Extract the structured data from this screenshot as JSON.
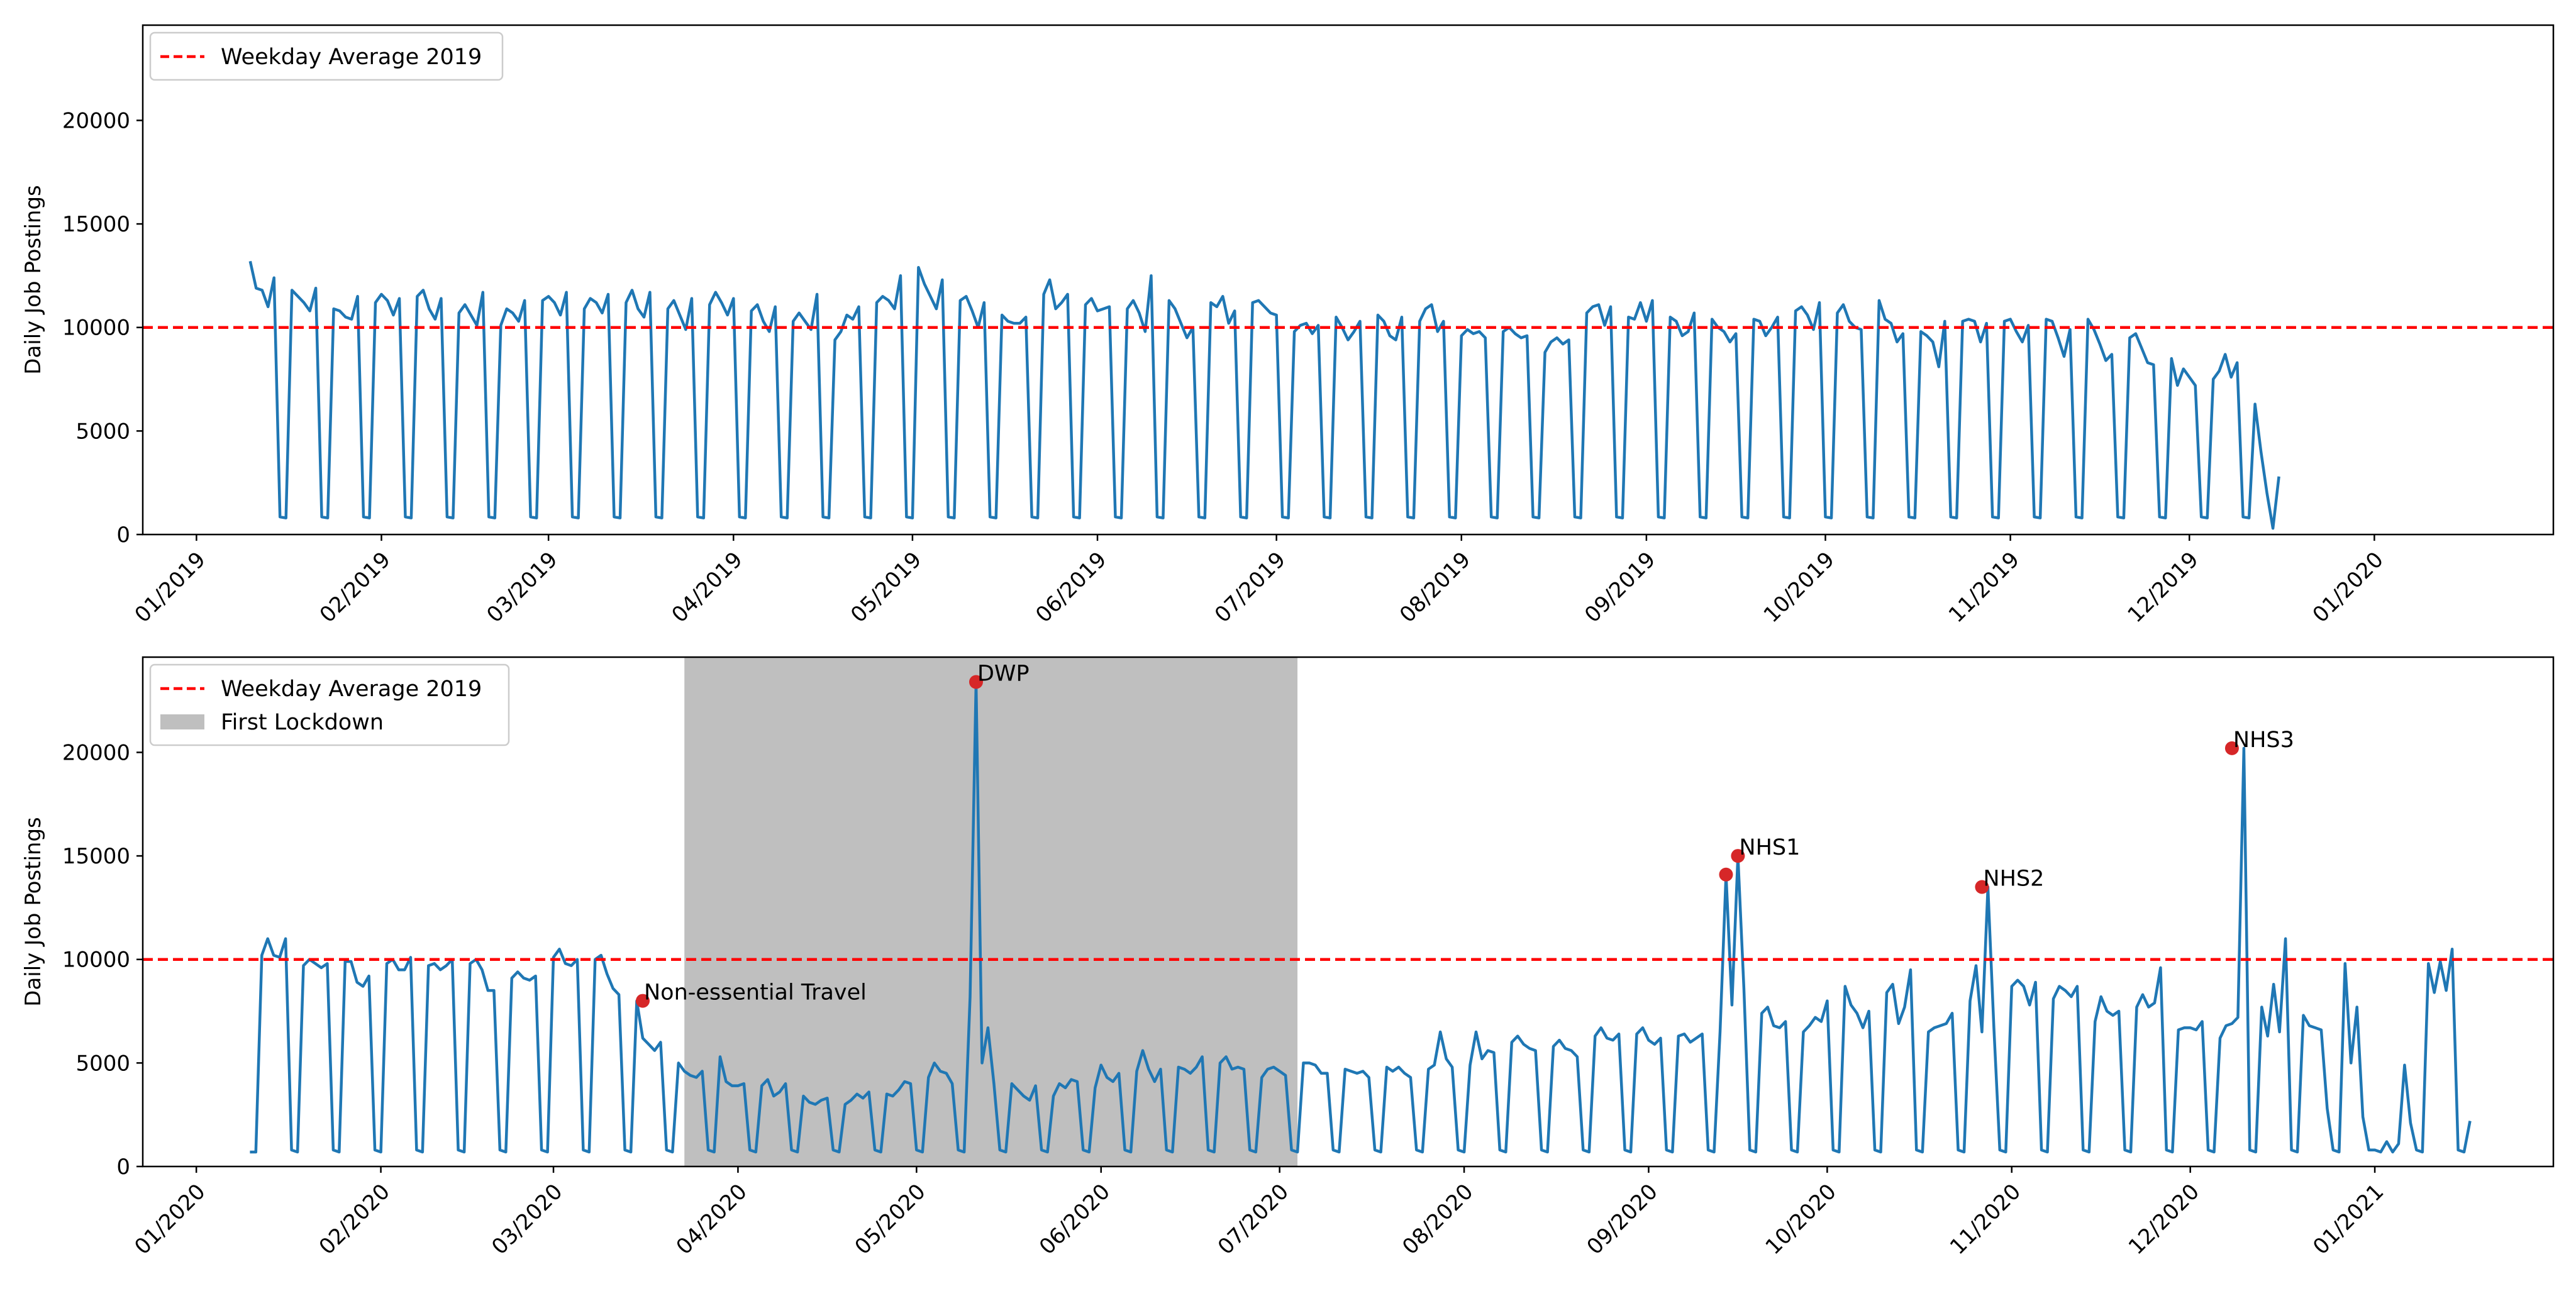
{
  "chart_data": [
    {
      "type": "line",
      "title": "",
      "xlabel": "",
      "ylabel": "Daily Job Postings",
      "xlim": [
        "2018-12-23",
        "2020-01-31"
      ],
      "ylim": [
        0,
        24600
      ],
      "yticks": [
        0,
        5000,
        10000,
        15000,
        20000
      ],
      "xticks": [
        {
          "date": "2019-01-01",
          "label": "01/2019"
        },
        {
          "date": "2019-02-01",
          "label": "02/2019"
        },
        {
          "date": "2019-03-01",
          "label": "03/2019"
        },
        {
          "date": "2019-04-01",
          "label": "04/2019"
        },
        {
          "date": "2019-05-01",
          "label": "05/2019"
        },
        {
          "date": "2019-06-01",
          "label": "06/2019"
        },
        {
          "date": "2019-07-01",
          "label": "07/2019"
        },
        {
          "date": "2019-08-01",
          "label": "08/2019"
        },
        {
          "date": "2019-09-01",
          "label": "09/2019"
        },
        {
          "date": "2019-10-01",
          "label": "10/2019"
        },
        {
          "date": "2019-11-01",
          "label": "11/2019"
        },
        {
          "date": "2019-12-01",
          "label": "12/2019"
        },
        {
          "date": "2020-01-01",
          "label": "01/2020"
        }
      ],
      "grid": false,
      "legend": {
        "position": "upper-left",
        "entries": [
          {
            "label": "Weekday Average 2019",
            "kind": "dashed-line",
            "color": "#ff0000"
          }
        ]
      },
      "hlines": [
        {
          "y": 10000,
          "color": "#ff0000",
          "style": "dashed"
        }
      ],
      "series": [
        {
          "color": "#1f77b4",
          "start_date": "2019-01-10",
          "weekday_pattern": [
            [
              13200,
              11900,
              11800,
              11000,
              12400
            ],
            [
              11800,
              11500,
              11200,
              10800,
              11900
            ],
            [
              10900,
              10800,
              10500,
              10400,
              11500
            ],
            [
              11200,
              11600,
              11300,
              10600,
              11400
            ],
            [
              11500,
              11800,
              10900,
              10400,
              11400
            ],
            [
              10700,
              11100,
              10600,
              10100,
              11700
            ],
            [
              10100,
              10900,
              10700,
              10300,
              11300
            ],
            [
              11300,
              11500,
              11200,
              10600,
              11700
            ],
            [
              10900,
              11400,
              11200,
              10700,
              11600
            ],
            [
              11200,
              11800,
              10900,
              10500,
              11700
            ],
            [
              10900,
              11300,
              10600,
              9900,
              11400
            ],
            [
              11100,
              11700,
              11200,
              10600,
              11400
            ],
            [
              10800,
              11100,
              10300,
              9800,
              11000
            ],
            [
              10300,
              10700,
              10300,
              9900,
              11600
            ],
            [
              9400,
              9800,
              10600,
              10400,
              11000
            ],
            [
              11200,
              11500,
              11300,
              10900,
              12500
            ],
            [
              12900,
              12100,
              11500,
              10900,
              12300
            ],
            [
              11300,
              11500,
              10800,
              10000,
              11200
            ],
            [
              10600,
              10300,
              10200,
              10200,
              10500
            ],
            [
              11600,
              12300,
              10900,
              11200,
              11600
            ],
            [
              11100,
              11400,
              10800,
              10900,
              11000
            ],
            [
              10900,
              11300,
              10700,
              9800,
              12500
            ],
            [
              11300,
              10900,
              10200,
              9500,
              10000
            ],
            [
              11200,
              11000,
              11500,
              10200,
              10800
            ],
            [
              11200,
              11300,
              11000,
              10700,
              10600
            ],
            [
              9800,
              10100,
              10200,
              9700,
              10100
            ],
            [
              10500,
              10000,
              9400,
              9800,
              10300
            ],
            [
              10600,
              10300,
              9600,
              9400,
              10500
            ],
            [
              10300,
              10900,
              11100,
              9800,
              10300
            ],
            [
              9600,
              9900,
              9700,
              9800,
              9500
            ],
            [
              9800,
              10000,
              9700,
              9500,
              9600
            ],
            [
              8800,
              9300,
              9500,
              9200,
              9400
            ],
            [
              10700,
              11000,
              11100,
              10100,
              11000
            ],
            [
              10500,
              10400,
              11200,
              10300,
              11300
            ],
            [
              10500,
              10300,
              9600,
              9800,
              10700
            ],
            [
              10400,
              10000,
              9800,
              9300,
              9700
            ],
            [
              10400,
              10300,
              9600,
              10000,
              10500
            ],
            [
              10800,
              11000,
              10600,
              9900,
              11200
            ],
            [
              10700,
              11100,
              10300,
              10000,
              9900
            ],
            [
              11300,
              10400,
              10200,
              9300,
              9700
            ],
            [
              9800,
              9600,
              9300,
              8100,
              10300
            ],
            [
              10300,
              10400,
              10300,
              9300,
              10200
            ],
            [
              10300,
              10400,
              9800,
              9300,
              10100
            ],
            [
              10400,
              10300,
              9500,
              8600,
              9900
            ],
            [
              10400,
              9900,
              9200,
              8400,
              8700
            ],
            [
              9500,
              9700,
              9000,
              8300,
              8200
            ],
            [
              8500,
              7200,
              8000,
              7600,
              7200
            ],
            [
              7500,
              7900,
              8700,
              7600,
              8300
            ],
            [
              6300,
              4000,
              2000,
              300,
              2800
            ]
          ],
          "weekend_values": [
            850,
            800
          ]
        }
      ]
    },
    {
      "type": "line",
      "title": "",
      "xlabel": "",
      "ylabel": "Daily Job Postings",
      "xlim": [
        "2019-12-23",
        "2021-01-31"
      ],
      "ylim": [
        0,
        24600
      ],
      "yticks": [
        0,
        5000,
        10000,
        15000,
        20000
      ],
      "xticks": [
        {
          "date": "2020-01-01",
          "label": "01/2020"
        },
        {
          "date": "2020-02-01",
          "label": "02/2020"
        },
        {
          "date": "2020-03-01",
          "label": "03/2020"
        },
        {
          "date": "2020-04-01",
          "label": "04/2020"
        },
        {
          "date": "2020-05-01",
          "label": "05/2020"
        },
        {
          "date": "2020-06-01",
          "label": "06/2020"
        },
        {
          "date": "2020-07-01",
          "label": "07/2020"
        },
        {
          "date": "2020-08-01",
          "label": "08/2020"
        },
        {
          "date": "2020-09-01",
          "label": "09/2020"
        },
        {
          "date": "2020-10-01",
          "label": "10/2020"
        },
        {
          "date": "2020-11-01",
          "label": "11/2020"
        },
        {
          "date": "2020-12-01",
          "label": "12/2020"
        },
        {
          "date": "2021-01-01",
          "label": "01/2021"
        }
      ],
      "grid": false,
      "legend": {
        "position": "upper-left",
        "entries": [
          {
            "label": "Weekday Average 2019",
            "kind": "dashed-line",
            "color": "#ff0000"
          },
          {
            "label": "First Lockdown",
            "kind": "patch",
            "color": "#bfbfbf"
          }
        ]
      },
      "hlines": [
        {
          "y": 10000,
          "color": "#ff0000",
          "style": "dashed"
        }
      ],
      "spans": [
        {
          "label": "First Lockdown",
          "start": "2020-03-23",
          "end": "2020-07-04",
          "color": "#bfbfbf"
        }
      ],
      "annotations": [
        {
          "label": "Non-essential Travel",
          "date": "2020-03-16",
          "y": 8000
        },
        {
          "label": "DWP",
          "date": "2020-05-11",
          "y": 23400
        },
        {
          "label": "",
          "date": "2020-09-14",
          "y": 14100
        },
        {
          "label": "NHS1",
          "date": "2020-09-16",
          "y": 15000
        },
        {
          "label": "NHS2",
          "date": "2020-10-27",
          "y": 13500
        },
        {
          "label": "NHS3",
          "date": "2020-12-08",
          "y": 20200
        }
      ],
      "series": [
        {
          "color": "#1f77b4",
          "start_date": "2020-01-10",
          "first_values": [
            700,
            700
          ],
          "weekday_pattern": [
            [
              10200,
              11000,
              10200,
              10100,
              11000
            ],
            [
              9700,
              10000,
              9800,
              9600,
              9800
            ],
            [
              9900,
              9900,
              8900,
              8700,
              9200
            ],
            [
              9800,
              10000,
              9500,
              9500,
              10100
            ],
            [
              9700,
              9800,
              9500,
              9700,
              10000
            ],
            [
              9800,
              10000,
              9500,
              8500,
              8500
            ],
            [
              9100,
              9400,
              9100,
              9000,
              9200
            ],
            [
              10100,
              10500,
              9800,
              9700,
              10000
            ],
            [
              10000,
              10200,
              9300,
              8600,
              8300
            ],
            [
              8000,
              6200,
              5900,
              5600,
              6000
            ],
            [
              5000,
              4600,
              4400,
              4300,
              4600
            ],
            [
              5300,
              4100,
              3900,
              3900,
              4000
            ],
            [
              3900,
              4200,
              3400,
              3600,
              4000
            ],
            [
              3400,
              3100,
              3000,
              3200,
              3300
            ],
            [
              3000,
              3200,
              3500,
              3300,
              3600
            ],
            [
              3500,
              3400,
              3700,
              4100,
              4000
            ],
            [
              4300,
              5000,
              4600,
              4500,
              4000
            ],
            [
              8200,
              23400,
              5000,
              6700,
              4000
            ],
            [
              4000,
              3700,
              3400,
              3200,
              3900
            ],
            [
              3400,
              4000,
              3800,
              4200,
              4100
            ],
            [
              3800,
              4900,
              4300,
              4100,
              4500
            ],
            [
              4600,
              5600,
              4700,
              4100,
              4700
            ],
            [
              4800,
              4700,
              4500,
              4800,
              5300
            ],
            [
              5000,
              5300,
              4700,
              4800,
              4700
            ],
            [
              4300,
              4700,
              4800,
              4600,
              4400
            ],
            [
              5000,
              5000,
              4900,
              4500,
              4500
            ],
            [
              4700,
              4600,
              4500,
              4600,
              4300
            ],
            [
              4800,
              4600,
              4800,
              4500,
              4300
            ],
            [
              4700,
              4900,
              6500,
              5200,
              4800
            ],
            [
              4900,
              6500,
              5200,
              5600,
              5500
            ],
            [
              6000,
              6300,
              5900,
              5700,
              5600
            ],
            [
              5800,
              6100,
              5700,
              5600,
              5300
            ],
            [
              6300,
              6700,
              6200,
              6100,
              6400
            ],
            [
              6400,
              6700,
              6100,
              5900,
              6200
            ],
            [
              6300,
              6400,
              6000,
              6200,
              6400
            ],
            [
              6500,
              14100,
              7800,
              15000,
              8600
            ],
            [
              7400,
              7700,
              6800,
              6700,
              7000
            ],
            [
              6500,
              6800,
              7200,
              7000,
              8000
            ],
            [
              8700,
              7800,
              7400,
              6700,
              7500
            ],
            [
              8400,
              8800,
              6900,
              7700,
              9500
            ],
            [
              6500,
              6700,
              6800,
              6900,
              7400
            ],
            [
              8000,
              9700,
              6500,
              13500,
              6700
            ],
            [
              8700,
              9000,
              8700,
              7800,
              8900
            ],
            [
              8100,
              8700,
              8500,
              8200,
              8700
            ],
            [
              7000,
              8200,
              7500,
              7300,
              7500
            ],
            [
              7700,
              8300,
              7700,
              7900,
              9600
            ],
            [
              6600,
              6700,
              6700,
              6600,
              7000
            ],
            [
              6200,
              6800,
              6900,
              7200,
              20200
            ],
            [
              7700,
              6300,
              8800,
              6500,
              11000
            ],
            [
              7300,
              6800,
              6700,
              6600,
              2800
            ],
            [
              9800,
              5000,
              7700,
              2400,
              800
            ],
            [
              1200,
              700,
              1100,
              4900,
              2100
            ],
            [
              9800,
              8400,
              9900,
              8500,
              10500
            ],
            [
              2200
            ]
          ],
          "weekend_values": [
            800,
            700
          ]
        }
      ]
    }
  ]
}
